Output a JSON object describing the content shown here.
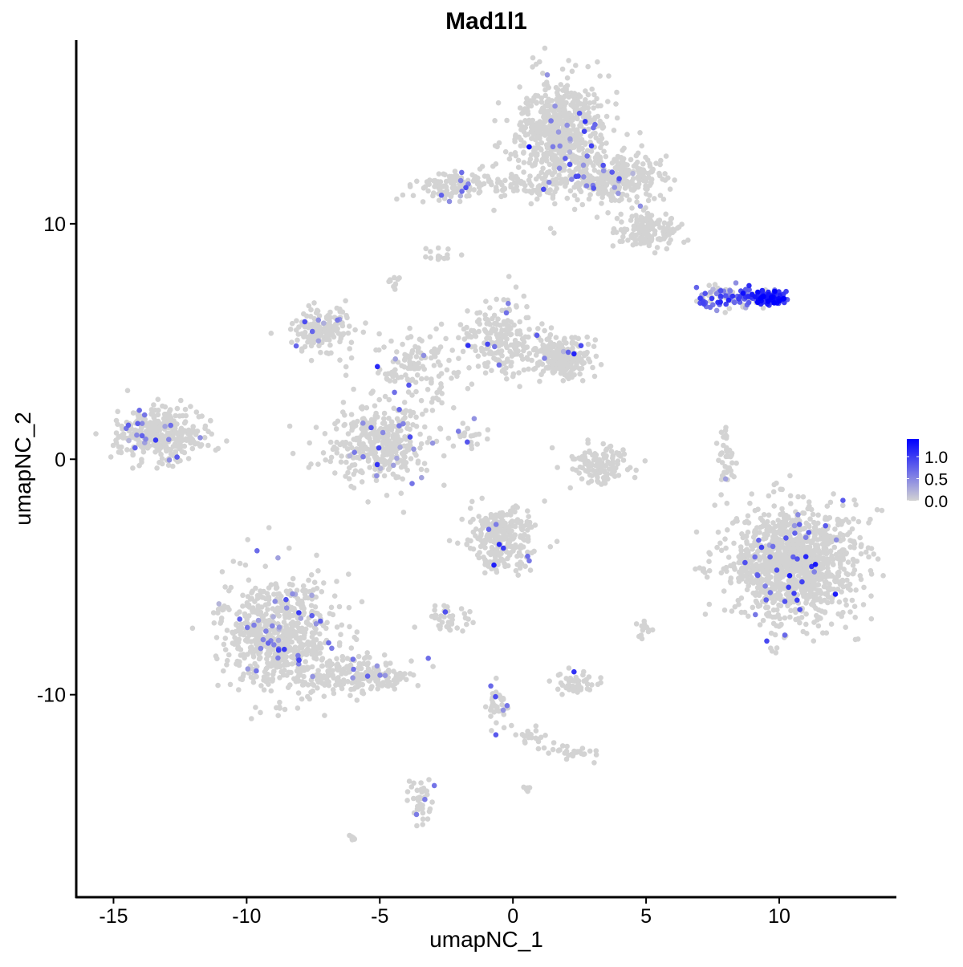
{
  "chart_data": {
    "type": "scatter",
    "title": "Mad1l1",
    "xlabel": "umapNC_1",
    "ylabel": "umapNC_2",
    "xlim": [
      -16.4,
      14.4
    ],
    "ylim": [
      -18.6,
      17.8
    ],
    "xticks": [
      -15,
      -10,
      -5,
      0,
      5,
      10
    ],
    "yticks": [
      -10,
      0,
      10
    ],
    "grid": false,
    "colors": {
      "low": "#d3d3d3",
      "high": "#0000ff"
    },
    "legend": {
      "position": "right",
      "ticks": [
        "0.0",
        "0.5",
        "1.0"
      ],
      "min": 0,
      "max": 1.4
    },
    "clusters_note_fields": [
      "cx",
      "cy",
      "sx",
      "sy",
      "n",
      "frac_expr",
      "mean_expr"
    ],
    "clusters": [
      [
        1.84,
        14.0,
        1.05,
        1.36,
        600,
        0.03,
        0.6
      ],
      [
        3.94,
        11.98,
        1.2,
        0.68,
        300,
        0.04,
        0.6
      ],
      [
        5.15,
        9.76,
        0.75,
        0.5,
        150,
        0.02,
        0.5
      ],
      [
        0.63,
        11.64,
        1.5,
        0.5,
        100,
        0.02,
        0.5
      ],
      [
        -2.23,
        11.64,
        0.9,
        0.4,
        120,
        0.06,
        0.6
      ],
      [
        -2.83,
        8.64,
        0.3,
        0.2,
        15,
        0.0,
        0.0
      ],
      [
        -4.49,
        7.38,
        0.2,
        0.3,
        10,
        0.1,
        0.5
      ],
      [
        8.3,
        6.87,
        1.0,
        0.27,
        110,
        0.6,
        0.7
      ],
      [
        9.6,
        6.87,
        0.45,
        0.22,
        90,
        0.9,
        1.1
      ],
      [
        -7.2,
        5.5,
        0.75,
        0.6,
        150,
        0.05,
        0.6
      ],
      [
        -0.57,
        5.16,
        0.9,
        1.0,
        200,
        0.03,
        0.6
      ],
      [
        1.84,
        4.31,
        0.75,
        0.5,
        250,
        0.02,
        0.6
      ],
      [
        -3.58,
        3.8,
        1.2,
        1.0,
        150,
        0.05,
        0.6
      ],
      [
        -5.09,
        0.56,
        1.2,
        1.0,
        350,
        0.06,
        0.6
      ],
      [
        -13.2,
        1.07,
        1.05,
        0.68,
        350,
        0.06,
        0.6
      ],
      [
        3.19,
        -0.29,
        0.75,
        0.5,
        120,
        0.02,
        0.7
      ],
      [
        8.0,
        0.22,
        0.18,
        0.85,
        40,
        0.05,
        0.5
      ],
      [
        10.57,
        -4.38,
        1.5,
        1.5,
        1200,
        0.03,
        0.8
      ],
      [
        -0.42,
        -3.36,
        0.75,
        0.85,
        250,
        0.04,
        0.8
      ],
      [
        -8.7,
        -7.44,
        1.35,
        1.5,
        700,
        0.05,
        0.6
      ],
      [
        -5.69,
        -9.15,
        1.2,
        0.5,
        200,
        0.04,
        0.6
      ],
      [
        -2.38,
        -6.76,
        0.5,
        0.3,
        40,
        0.05,
        0.6
      ],
      [
        2.29,
        -9.49,
        0.5,
        0.3,
        50,
        0.05,
        0.6
      ],
      [
        -0.57,
        -10.5,
        0.3,
        0.8,
        40,
        0.1,
        0.7
      ],
      [
        2.14,
        -12.39,
        0.6,
        0.2,
        30,
        0.08,
        0.6
      ],
      [
        -3.43,
        -14.6,
        0.3,
        0.5,
        40,
        0.05,
        0.6
      ],
      [
        5.0,
        -7.27,
        0.2,
        0.3,
        15,
        0.1,
        0.6
      ],
      [
        -1.78,
        1.07,
        0.5,
        0.3,
        20,
        0.05,
        0.6
      ],
      [
        0.78,
        -11.7,
        0.4,
        0.2,
        20,
        0.0,
        0.0
      ],
      [
        -6.05,
        -16.06,
        0.15,
        0.1,
        8,
        0.0,
        0.0
      ],
      [
        0.54,
        -14.0,
        0.1,
        0.1,
        6,
        0.0,
        0.0
      ]
    ]
  }
}
